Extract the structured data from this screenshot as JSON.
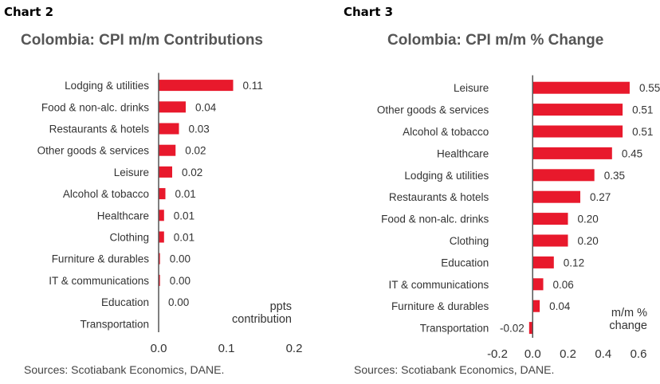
{
  "panels": [
    {
      "label": "Chart 2",
      "source": "Sources: Scotiabank Economics, DANE."
    },
    {
      "label": "Chart 3",
      "source": "Sources: Scotiabank Economics, DANE."
    }
  ],
  "colors": {
    "bar": "#e8192c",
    "axis": "#555555",
    "text": "#333333"
  },
  "chart_data": [
    {
      "type": "bar",
      "orientation": "horizontal",
      "title": "Colombia: CPI m/m Contributions",
      "unit_label": [
        "ppts",
        "contribution"
      ],
      "categories": [
        "Lodging & utilities",
        "Food & non-alc. drinks",
        "Restaurants & hotels",
        "Other goods & services",
        "Leisure",
        "Alcohol & tobacco",
        "Healthcare",
        "Clothing",
        "Furniture & durables",
        "IT & communications",
        "Education",
        "Transportation"
      ],
      "values": [
        0.11,
        0.04,
        0.03,
        0.025,
        0.02,
        0.01,
        0.008,
        0.008,
        0.002,
        0.002,
        0,
        0
      ],
      "data_labels": [
        "0.11",
        "0.04",
        "0.03",
        "0.02",
        "0.02",
        "0.01",
        "0.01",
        "0.01",
        "0.00",
        "0.00",
        "0.00",
        ""
      ],
      "xlim": [
        0,
        0.2
      ],
      "xticks": [
        "0.0",
        "0.1",
        "0.2"
      ],
      "grid": false,
      "legend": "none"
    },
    {
      "type": "bar",
      "orientation": "horizontal",
      "title": "Colombia: CPI m/m % Change",
      "unit_label": [
        "m/m %",
        "change"
      ],
      "categories": [
        "Leisure",
        "Other goods & services",
        "Alcohol & tobacco",
        "Healthcare",
        "Lodging & utilities",
        "Restaurants & hotels",
        "Food & non-alc. drinks",
        "Clothing",
        "Education",
        "IT & communications",
        "Furniture & durables",
        "Transportation"
      ],
      "values": [
        0.55,
        0.51,
        0.51,
        0.45,
        0.35,
        0.27,
        0.2,
        0.2,
        0.12,
        0.06,
        0.04,
        -0.02
      ],
      "data_labels": [
        "0.55",
        "0.51",
        "0.51",
        "0.45",
        "0.35",
        "0.27",
        "0.20",
        "0.20",
        "0.12",
        "0.06",
        "0.04",
        "-0.02"
      ],
      "xlim": [
        -0.2,
        0.6
      ],
      "xticks": [
        "-0.2",
        "0.0",
        "0.2",
        "0.4",
        "0.6"
      ],
      "grid": false,
      "legend": "none"
    }
  ]
}
